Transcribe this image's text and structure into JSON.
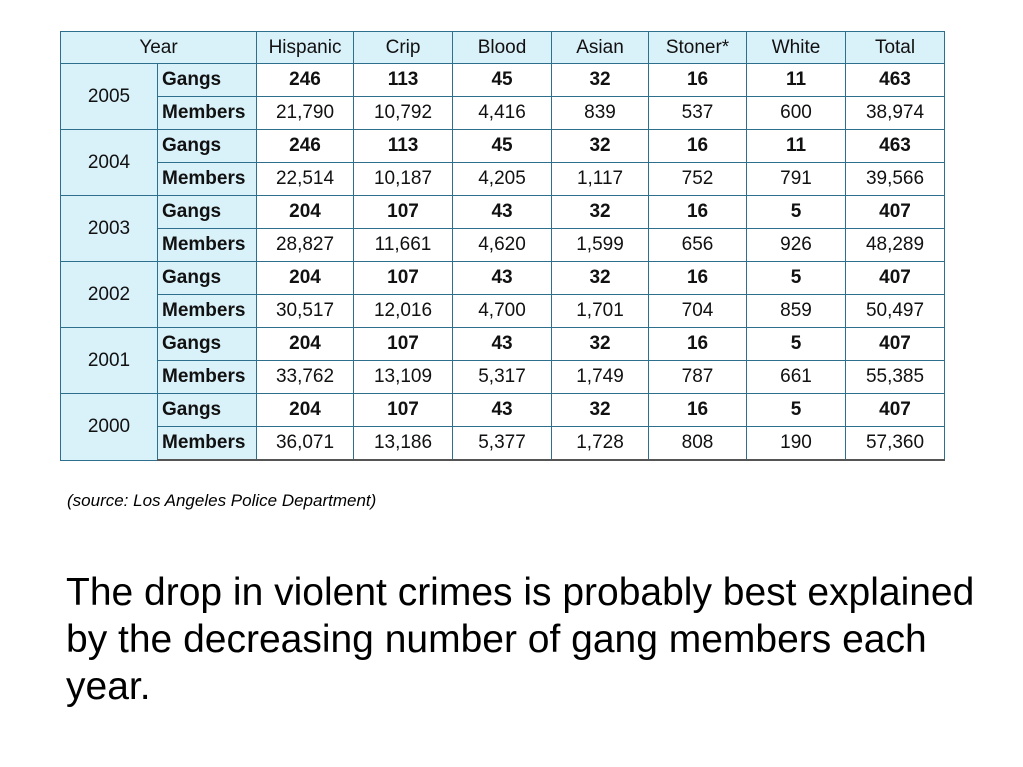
{
  "table": {
    "headers": [
      "Year",
      "Hispanic",
      "Crip",
      "Blood",
      "Asian",
      "Stoner*",
      "White",
      "Total"
    ],
    "rows": [
      {
        "year": "2005",
        "gangs_label": "Gangs",
        "gangs": [
          "246",
          "113",
          "45",
          "32",
          "16",
          "11",
          "463"
        ],
        "members_label": "Members",
        "members": [
          "21,790",
          "10,792",
          "4,416",
          "839",
          "537",
          "600",
          "38,974"
        ]
      },
      {
        "year": "2004",
        "gangs_label": "Gangs",
        "gangs": [
          "246",
          "113",
          "45",
          "32",
          "16",
          "11",
          "463"
        ],
        "members_label": "Members",
        "members": [
          "22,514",
          "10,187",
          "4,205",
          "1,117",
          "752",
          "791",
          "39,566"
        ]
      },
      {
        "year": "2003",
        "gangs_label": "Gangs",
        "gangs": [
          "204",
          "107",
          "43",
          "32",
          "16",
          "5",
          "407"
        ],
        "members_label": "Members",
        "members": [
          "28,827",
          "11,661",
          "4,620",
          "1,599",
          "656",
          "926",
          "48,289"
        ]
      },
      {
        "year": "2002",
        "gangs_label": "Gangs",
        "gangs": [
          "204",
          "107",
          "43",
          "32",
          "16",
          "5",
          "407"
        ],
        "members_label": "Members",
        "members": [
          "30,517",
          "12,016",
          "4,700",
          "1,701",
          "704",
          "859",
          "50,497"
        ]
      },
      {
        "year": "2001",
        "gangs_label": "Gangs",
        "gangs": [
          "204",
          "107",
          "43",
          "32",
          "16",
          "5",
          "407"
        ],
        "members_label": "Members",
        "members": [
          "33,762",
          "13,109",
          "5,317",
          "1,749",
          "787",
          "661",
          "55,385"
        ]
      },
      {
        "year": "2000",
        "gangs_label": "Gangs",
        "gangs": [
          "204",
          "107",
          "43",
          "32",
          "16",
          "5",
          "407"
        ],
        "members_label": "Members",
        "members": [
          "36,071",
          "13,186",
          "5,377",
          "1,728",
          "808",
          "190",
          "57,360"
        ]
      }
    ]
  },
  "source": "(source: Los Angeles Police Department)",
  "body_text": "The drop in violent crimes is probably best explained by the decreasing number of gang members each year.",
  "colors": {
    "header_fill": "#d9f1f9",
    "border": "#2e6f8e"
  }
}
